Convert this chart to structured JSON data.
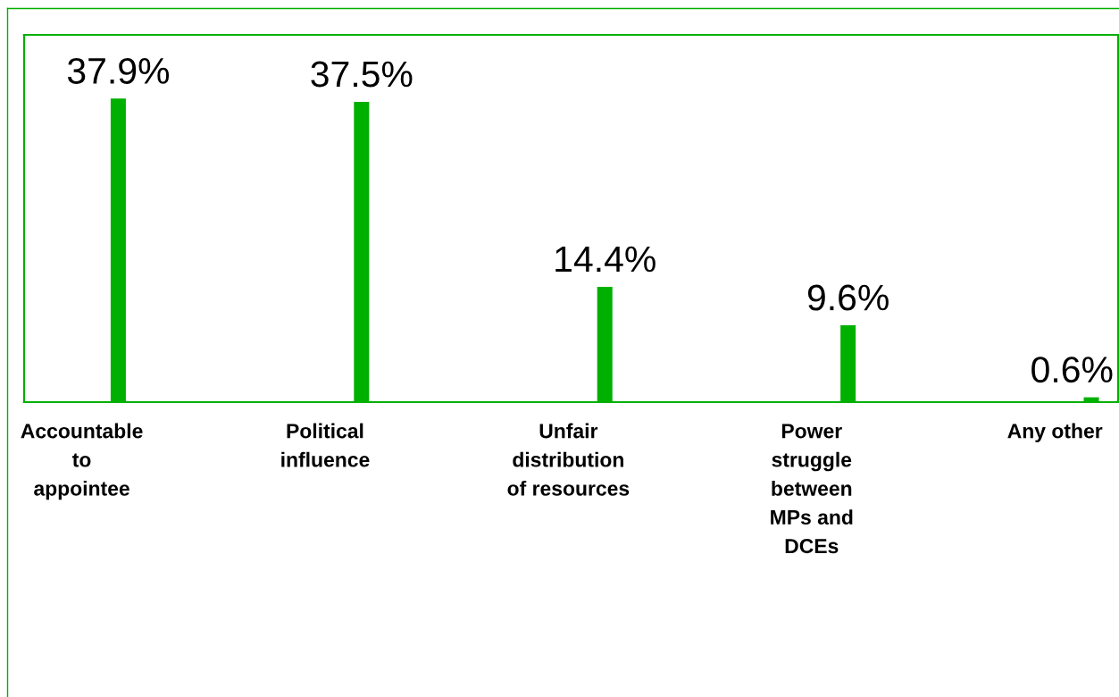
{
  "chart_data": {
    "type": "bar",
    "categories": [
      "Accountable\nto\nappointee",
      "Political\ninfluence",
      "Unfair\ndistribution\nof resources",
      "Power\nstruggle\nbetween\nMPs and\nDCEs",
      "Any other"
    ],
    "values": [
      37.9,
      37.5,
      14.4,
      9.6,
      0.6
    ],
    "value_labels": [
      "37.9%",
      "37.5%",
      "14.4%",
      "9.6%",
      "0.6%"
    ],
    "color": "#00b000",
    "tick_labels": "x"
  }
}
